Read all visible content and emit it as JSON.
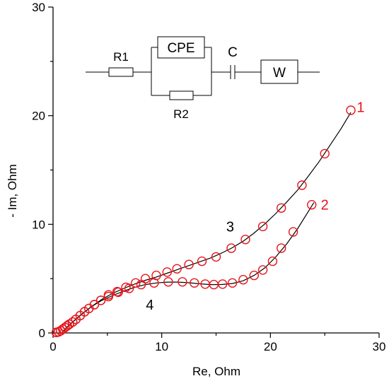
{
  "chart_data": {
    "type": "scatter",
    "title": "",
    "xlabel": "Re, Ohm",
    "ylabel": "- Im, Ohm",
    "xlim": [
      0,
      30
    ],
    "ylim": [
      0,
      30
    ],
    "xticks": [
      "0",
      "10",
      "20",
      "30"
    ],
    "yticks": [
      "0",
      "10",
      "20",
      "30"
    ],
    "grid": false,
    "colors": {
      "markers": "#e8141b",
      "fit": "#000000",
      "axes": "#000000"
    },
    "series": [
      {
        "label": "1",
        "marker": "open-circle",
        "points": [
          [
            0.3,
            0.05
          ],
          [
            0.5,
            0.1
          ],
          [
            0.7,
            0.2
          ],
          [
            0.9,
            0.35
          ],
          [
            1.1,
            0.5
          ],
          [
            1.3,
            0.65
          ],
          [
            1.5,
            0.8
          ],
          [
            1.8,
            1.0
          ],
          [
            2.1,
            1.25
          ],
          [
            2.5,
            1.6
          ],
          [
            2.9,
            1.95
          ],
          [
            3.3,
            2.25
          ],
          [
            3.8,
            2.6
          ],
          [
            4.4,
            3.0
          ],
          [
            5.1,
            3.5
          ],
          [
            5.9,
            3.8
          ],
          [
            6.7,
            4.2
          ],
          [
            7.6,
            4.6
          ],
          [
            8.5,
            5.0
          ],
          [
            9.5,
            5.3
          ],
          [
            10.5,
            5.6
          ],
          [
            11.4,
            5.9
          ],
          [
            12.5,
            6.3
          ],
          [
            13.7,
            6.6
          ],
          [
            15.0,
            7.0
          ],
          [
            16.4,
            7.8
          ],
          [
            17.7,
            8.6
          ],
          [
            19.3,
            9.8
          ],
          [
            21.0,
            11.5
          ],
          [
            22.9,
            13.6
          ],
          [
            25.0,
            16.5
          ],
          [
            27.4,
            20.5
          ]
        ]
      },
      {
        "label": "2",
        "marker": "open-circle",
        "points": [
          [
            0.3,
            0.05
          ],
          [
            0.5,
            0.1
          ],
          [
            0.7,
            0.2
          ],
          [
            0.9,
            0.35
          ],
          [
            1.1,
            0.5
          ],
          [
            1.3,
            0.65
          ],
          [
            1.5,
            0.8
          ],
          [
            1.8,
            1.0
          ],
          [
            2.1,
            1.25
          ],
          [
            2.5,
            1.6
          ],
          [
            2.9,
            1.95
          ],
          [
            3.3,
            2.25
          ],
          [
            3.8,
            2.6
          ],
          [
            4.4,
            3.0
          ],
          [
            5.1,
            3.35
          ],
          [
            6.0,
            3.75
          ],
          [
            7.0,
            4.1
          ],
          [
            8.1,
            4.45
          ],
          [
            9.3,
            4.6
          ],
          [
            10.6,
            4.7
          ],
          [
            11.9,
            4.7
          ],
          [
            13.0,
            4.6
          ],
          [
            14.0,
            4.5
          ],
          [
            14.8,
            4.45
          ],
          [
            15.6,
            4.5
          ],
          [
            16.5,
            4.6
          ],
          [
            17.5,
            4.9
          ],
          [
            18.5,
            5.3
          ],
          [
            19.3,
            5.8
          ],
          [
            20.2,
            6.6
          ],
          [
            21.0,
            7.8
          ],
          [
            22.1,
            9.3
          ],
          [
            23.8,
            11.8
          ]
        ]
      }
    ],
    "fits": [
      {
        "label": "3",
        "points": [
          [
            0.8,
            0
          ],
          [
            1.2,
            0.45
          ],
          [
            1.8,
            1.0
          ],
          [
            2.6,
            1.7
          ],
          [
            3.5,
            2.4
          ],
          [
            4.5,
            3.1
          ],
          [
            5.5,
            3.65
          ],
          [
            6.5,
            4.1
          ],
          [
            7.5,
            4.5
          ],
          [
            8.5,
            4.85
          ],
          [
            9.5,
            5.15
          ],
          [
            10.5,
            5.5
          ],
          [
            11.5,
            5.85
          ],
          [
            12.5,
            6.2
          ],
          [
            13.5,
            6.55
          ],
          [
            14.5,
            6.9
          ],
          [
            15.5,
            7.35
          ],
          [
            16.5,
            7.85
          ],
          [
            17.5,
            8.45
          ],
          [
            18.5,
            9.2
          ],
          [
            19.5,
            10.05
          ],
          [
            20.5,
            11.0
          ],
          [
            21.5,
            12.05
          ],
          [
            22.5,
            13.15
          ],
          [
            23.5,
            14.45
          ],
          [
            24.5,
            15.8
          ],
          [
            25.5,
            17.3
          ],
          [
            26.5,
            18.8
          ],
          [
            27.4,
            20.3
          ]
        ]
      },
      {
        "label": "4",
        "points": [
          [
            0.8,
            0
          ],
          [
            1.2,
            0.45
          ],
          [
            1.8,
            1.0
          ],
          [
            2.6,
            1.7
          ],
          [
            3.5,
            2.4
          ],
          [
            4.5,
            3.0
          ],
          [
            5.5,
            3.45
          ],
          [
            6.5,
            3.85
          ],
          [
            7.5,
            4.2
          ],
          [
            8.5,
            4.45
          ],
          [
            9.5,
            4.6
          ],
          [
            10.5,
            4.68
          ],
          [
            11.5,
            4.68
          ],
          [
            12.5,
            4.62
          ],
          [
            13.5,
            4.52
          ],
          [
            14.5,
            4.45
          ],
          [
            15.5,
            4.46
          ],
          [
            16.5,
            4.55
          ],
          [
            17.5,
            4.8
          ],
          [
            18.5,
            5.3
          ],
          [
            19.5,
            6.0
          ],
          [
            20.5,
            7.0
          ],
          [
            21.5,
            8.2
          ],
          [
            22.5,
            9.6
          ],
          [
            23.5,
            11.2
          ],
          [
            24.0,
            12.0
          ]
        ]
      }
    ],
    "annotations": [
      {
        "text": "1",
        "x": 28.3,
        "y": 20.8,
        "color": "#e8141b"
      },
      {
        "text": "2",
        "x": 25.0,
        "y": 11.8,
        "color": "#e8141b"
      },
      {
        "text": "3",
        "x": 16.3,
        "y": 9.8,
        "color": "#000000"
      },
      {
        "text": "4",
        "x": 8.9,
        "y": 2.6,
        "color": "#000000"
      }
    ]
  },
  "circuit": {
    "r1_label": "R1",
    "cpe_label": "CPE",
    "r2_label": "R2",
    "c_label": "C",
    "w_label": "W"
  }
}
